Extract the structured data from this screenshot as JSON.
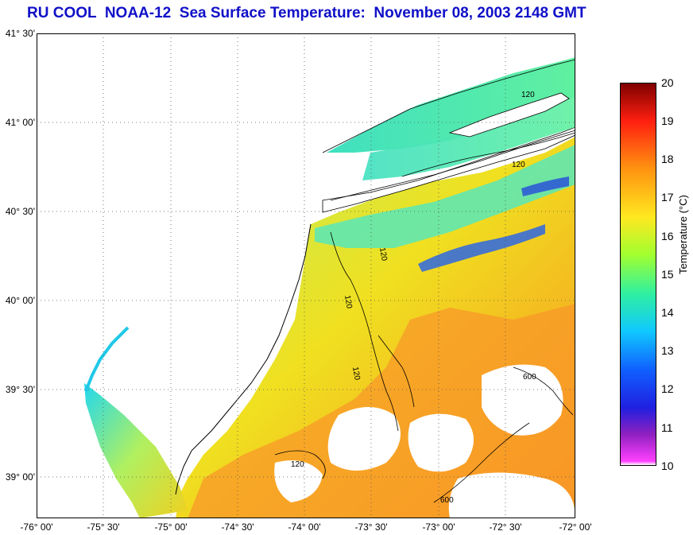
{
  "title": "RU COOL  NOAA-12  Sea Surface Temperature:  November 08, 2003 2148 GMT",
  "lat_labels": [
    "41° 30'",
    "41° 00'",
    "40° 30'",
    "40° 00'",
    "39° 30'",
    "39° 00'"
  ],
  "lon_labels": [
    "-76° 00'",
    "-75° 30'",
    "-75° 00'",
    "-74° 30'",
    "-74° 00'",
    "-73° 30'",
    "-73° 00'",
    "-72° 30'",
    "-72° 00'"
  ],
  "colorbar": {
    "ticks": [
      "20",
      "19",
      "18",
      "17",
      "16",
      "15",
      "14",
      "13",
      "12",
      "11",
      "10"
    ],
    "label": "Temperature (°C)",
    "min": 10,
    "max": 20,
    "colors": [
      "#ff40ff",
      "#8020c0",
      "#2020e0",
      "#1060ff",
      "#10c8ff",
      "#40ff90",
      "#c0ff20",
      "#ffe020",
      "#ff9010",
      "#ff2010",
      "#800000"
    ]
  },
  "contours": [
    "120",
    "120",
    "120",
    "120",
    "120",
    "120",
    "600",
    "600"
  ],
  "colors": {
    "title": "#1010c8",
    "land": "#ffffff",
    "ocean_warm": "#f8a020",
    "ocean_mid": "#e8f020",
    "ocean_cool": "#60e8a0"
  }
}
